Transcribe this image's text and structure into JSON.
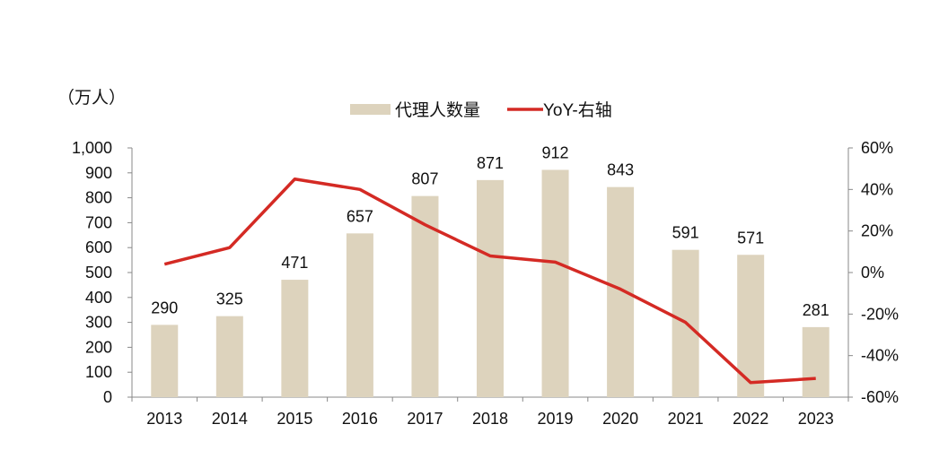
{
  "chart_data": {
    "type": "bar+line",
    "unit_label": "（万人）",
    "categories": [
      "2013",
      "2014",
      "2015",
      "2016",
      "2017",
      "2018",
      "2019",
      "2020",
      "2021",
      "2022",
      "2023"
    ],
    "series": [
      {
        "name": "代理人数量",
        "type": "bar",
        "axis": "left",
        "color": "#ddd3bd",
        "values": [
          290,
          325,
          471,
          657,
          807,
          871,
          912,
          843,
          591,
          571,
          281
        ]
      },
      {
        "name": "YoY-右轴",
        "type": "line",
        "axis": "right",
        "color": "#d42a24",
        "values": [
          4,
          12,
          45,
          40,
          23,
          8,
          5,
          -8,
          -24,
          -53,
          -51
        ]
      }
    ],
    "left_axis": {
      "range": [
        0,
        1000
      ],
      "ticks": [
        "0",
        "100",
        "200",
        "300",
        "400",
        "500",
        "600",
        "700",
        "800",
        "900",
        "1,000"
      ]
    },
    "right_axis": {
      "range": [
        -60,
        60
      ],
      "ticks": [
        "-60%",
        "-40%",
        "-20%",
        "0%",
        "20%",
        "40%",
        "60%"
      ]
    },
    "legend_position": "top-center",
    "grid": false
  }
}
